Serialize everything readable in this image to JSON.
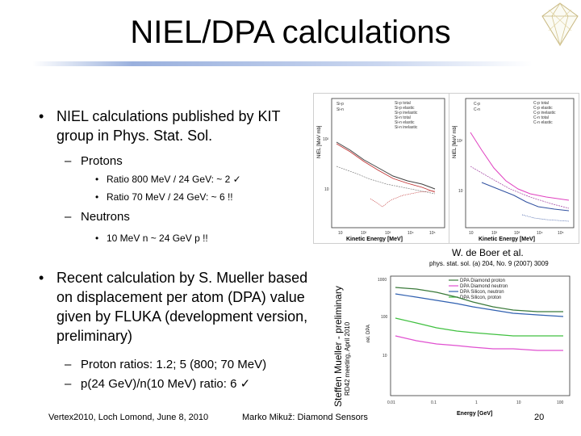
{
  "slide": {
    "title": "NIEL/DPA calculations",
    "bullets": [
      {
        "text": "NIEL calculations published by KIT group in Phys. Stat. Sol."
      },
      {
        "text": "Recent calculation by S. Mueller based on displacement per atom (DPA) value given by FLUKA (development version, preliminary)"
      }
    ],
    "protons": {
      "label": "Protons",
      "items": [
        "Ratio 800 MeV / 24 GeV: ~ 2 ✓",
        "Ratio 70 MeV / 24 GeV: ~ 6 !!"
      ]
    },
    "neutrons": {
      "label": "Neutrons",
      "items": [
        "10 MeV n ~ 24 GeV p !!"
      ]
    },
    "mueller_items": [
      "Proton ratios: 1.2; 5 (800; 70 MeV)",
      "p(24 GeV)/n(10 MeV) ratio: 6 ✓"
    ],
    "citation_author": "W. de Boer et al.",
    "citation_ref": "phys. stat. sol. (a) 204, No. 9 (2007) 3009",
    "vertical_name": "Steffen Mueller - preliminary",
    "vertical_meeting": "RD42 meeting, April 2010",
    "footer_left": "Vertex2010, Loch Lomond, June 8, 2010",
    "footer_center": "Marko Mikuž: Diamond Sensors",
    "page_number": "20"
  },
  "plots": {
    "niel_si": {
      "ylabel": "NIEL [MeV mb]",
      "xlabel": "Kinetic Energy [MeV]",
      "legend_left": [
        "Si-p",
        "Si-n"
      ],
      "legend_right": [
        "Si-p total",
        "Si-p elastic",
        "Si-p inelastic",
        "Si-n total",
        "Si-n elastic",
        "Si-n inelastic"
      ],
      "yticks": [
        "10²",
        "10"
      ],
      "xticks": [
        "10",
        "10²",
        "10³",
        "10⁴",
        "10⁵"
      ],
      "colors": {
        "p": "#404040",
        "n": "#c03030"
      }
    },
    "niel_c": {
      "ylabel": "NIEL [MeV mb]",
      "xlabel": "Kinetic Energy [MeV]",
      "legend_left": [
        "C-p",
        "C-n"
      ],
      "legend_right": [
        "C-p total",
        "C-p elastic",
        "C-p inelastic",
        "C-n total",
        "C-n elastic"
      ],
      "yticks": [
        "10²",
        "10"
      ],
      "xticks": [
        "10",
        "10²",
        "10³",
        "10⁴",
        "10⁵"
      ],
      "colors": {
        "p": "#e040c0",
        "n": "#3050a0"
      }
    },
    "dpa": {
      "xlabel": "Energy [GeV]",
      "ylabel": "rel. DPA",
      "yticks": [
        "1000",
        "100",
        "10"
      ],
      "xticks": [
        "0.01",
        "0.1",
        "1",
        "10",
        "100"
      ],
      "legend": [
        "DPA Diamond proton",
        "DPA Diamond neutron",
        "DPA Silicon, neutron",
        "DPA Silicon, proton"
      ],
      "colors": [
        "#3a7a3a",
        "#e050d0",
        "#3060b0",
        "#40c040"
      ]
    }
  }
}
